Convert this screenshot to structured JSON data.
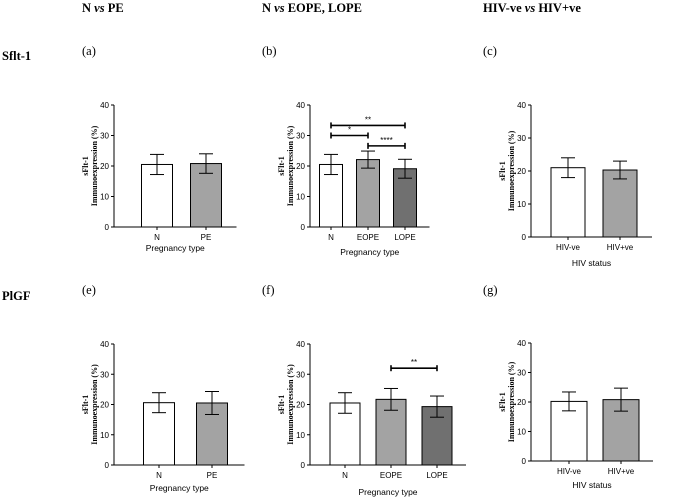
{
  "headers": {
    "col1": {
      "pre": "N ",
      "vs": "vs",
      "post": " PE"
    },
    "col2": {
      "pre": "N ",
      "vs": "vs",
      "post": " EOPE, LOPE"
    },
    "col3": {
      "pre": "HIV-ve ",
      "vs": "vs",
      "post": " HIV+ve"
    },
    "row1": "Sflt-1",
    "row2": "PlGF"
  },
  "colors": {
    "white_bar": "#ffffff",
    "gray_bar": "#a3a3a3",
    "dark_bar": "#707070",
    "axis": "#000000"
  },
  "chart_data": [
    {
      "id": "a",
      "panel_label": "(a)",
      "type": "bar",
      "ylabel_top": "sFlt-1",
      "ylabel_bottom": "Immunoexpression (%)",
      "xlabel": "Pregnancy type",
      "ylim": [
        0,
        40
      ],
      "yticks": [
        0,
        10,
        20,
        30,
        40
      ],
      "categories": [
        "N",
        "PE"
      ],
      "values": [
        20.5,
        20.8
      ],
      "errors": [
        3.3,
        3.2
      ],
      "colors": [
        "#ffffff",
        "#a3a3a3"
      ],
      "significance": []
    },
    {
      "id": "b",
      "panel_label": "(b)",
      "type": "bar",
      "ylabel_top": "sFlt-1",
      "ylabel_bottom": "Immunoexpression (%)",
      "xlabel": "Pregnancy type",
      "ylim": [
        0,
        40
      ],
      "yticks": [
        0,
        10,
        20,
        30,
        40
      ],
      "categories": [
        "N",
        "EOPE",
        "LOPE"
      ],
      "values": [
        20.5,
        22.1,
        19.1
      ],
      "errors": [
        3.3,
        2.8,
        3.1
      ],
      "colors": [
        "#ffffff",
        "#a3a3a3",
        "#707070"
      ],
      "significance": [
        {
          "from": 0,
          "to": 2,
          "y": 33.3,
          "label": "**"
        },
        {
          "from": 0,
          "to": 1,
          "y": 30.0,
          "label": "*"
        },
        {
          "from": 1,
          "to": 2,
          "y": 26.6,
          "label": "****"
        }
      ]
    },
    {
      "id": "c",
      "panel_label": "(c)",
      "type": "bar",
      "ylabel_top": "sFlt-1",
      "ylabel_bottom": "Immunoexpression (%)",
      "xlabel": "HIV status",
      "ylim": [
        0,
        40
      ],
      "yticks": [
        0,
        10,
        20,
        30,
        40
      ],
      "categories": [
        "HIV-ve",
        "HIV+ve"
      ],
      "values": [
        21.0,
        20.3
      ],
      "errors": [
        3.0,
        2.7
      ],
      "colors": [
        "#ffffff",
        "#a3a3a3"
      ],
      "significance": []
    },
    {
      "id": "e",
      "panel_label": "(e)",
      "type": "bar",
      "ylabel_top": "sFlt-1",
      "ylabel_bottom": "Immunoexpression (%)",
      "xlabel": "Pregnancy type",
      "ylim": [
        0,
        40
      ],
      "yticks": [
        0,
        10,
        20,
        30,
        40
      ],
      "categories": [
        "N",
        "PE"
      ],
      "values": [
        20.6,
        20.5
      ],
      "errors": [
        3.3,
        3.8
      ],
      "colors": [
        "#ffffff",
        "#a3a3a3"
      ],
      "significance": []
    },
    {
      "id": "f",
      "panel_label": "(f)",
      "type": "bar",
      "ylabel_top": "sFlt-1",
      "ylabel_bottom": "Immunoexpression (%)",
      "xlabel": "Pregnancy type",
      "ylim": [
        0,
        40
      ],
      "yticks": [
        0,
        10,
        20,
        30,
        40
      ],
      "categories": [
        "N",
        "EOPE",
        "LOPE"
      ],
      "values": [
        20.5,
        21.7,
        19.3
      ],
      "errors": [
        3.4,
        3.6,
        3.5
      ],
      "colors": [
        "#ffffff",
        "#a3a3a3",
        "#707070"
      ],
      "significance": [
        {
          "from": 1,
          "to": 2,
          "y": 32.0,
          "label": "**"
        }
      ]
    },
    {
      "id": "g",
      "panel_label": "(g)",
      "type": "bar",
      "ylabel_top": "sFlt-1",
      "ylabel_bottom": "Immunoexpression (%)",
      "xlabel": "HIV status",
      "ylim": [
        0,
        40
      ],
      "yticks": [
        0,
        10,
        20,
        30,
        40
      ],
      "categories": [
        "HIV-ve",
        "HIV+ve"
      ],
      "values": [
        20.2,
        20.8
      ],
      "errors": [
        3.2,
        3.9
      ],
      "colors": [
        "#ffffff",
        "#a3a3a3"
      ],
      "significance": []
    }
  ]
}
